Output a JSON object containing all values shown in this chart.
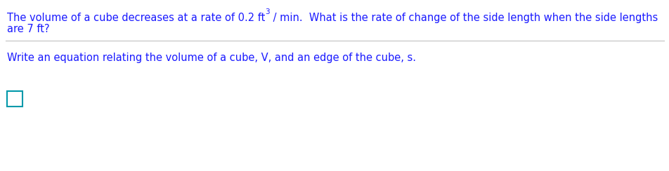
{
  "background_color": "#ffffff",
  "text_color": "#1a1aff",
  "box_color": "#0099aa",
  "divider_color": "#c0c0c0",
  "font_size": 10.5,
  "super_font_size": 7.5,
  "line1a": "The volume of a cube decreases at a rate of 0.2 ft",
  "line1_super": "3",
  "line1b": " / min.  What is the rate of change of the side length when the side lengths",
  "line2": "are 7 ft?",
  "line3": "Write an equation relating the volume of a cube, V, and an edge of the cube, s.",
  "fig_width": 9.53,
  "fig_height": 2.44,
  "dpi": 100
}
